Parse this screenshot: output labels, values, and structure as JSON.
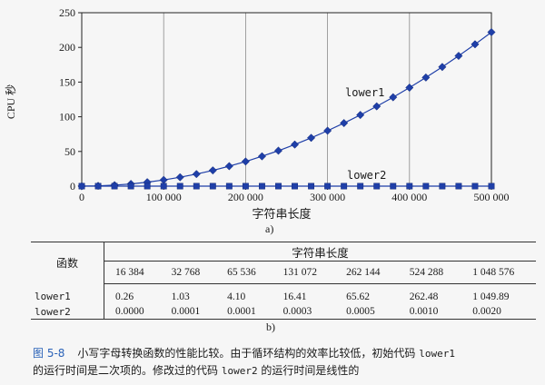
{
  "chart_data": {
    "type": "line",
    "ylabel": "CPU 秒",
    "xlabel": "字符串长度",
    "xlim": [
      0,
      500000
    ],
    "ylim": [
      0,
      250
    ],
    "xticks": [
      0,
      100000,
      200000,
      300000,
      400000,
      500000
    ],
    "xtick_labels": [
      "0",
      "100 000",
      "200 000",
      "300 000",
      "400 000",
      "500 000"
    ],
    "yticks": [
      0,
      50,
      100,
      150,
      200,
      250
    ],
    "ytick_labels": [
      "0",
      "50",
      "100",
      "150",
      "200",
      "250"
    ],
    "grid": "vertical",
    "series_color": "#1f3fa8",
    "series": [
      {
        "name": "lower1",
        "marker": "diamond",
        "x": [
          0,
          20000,
          40000,
          60000,
          80000,
          100000,
          120000,
          140000,
          160000,
          180000,
          200000,
          220000,
          240000,
          260000,
          280000,
          300000,
          320000,
          340000,
          360000,
          380000,
          400000,
          420000,
          440000,
          460000,
          480000,
          500000
        ],
        "y": [
          0,
          0.4,
          1.4,
          3.2,
          5.7,
          8.9,
          12.8,
          17.4,
          22.7,
          28.8,
          35.5,
          43.0,
          51.1,
          60.0,
          69.6,
          79.9,
          90.9,
          102.6,
          115.0,
          128.1,
          142.0,
          156.6,
          171.8,
          187.8,
          204.5,
          221.9
        ]
      },
      {
        "name": "lower2",
        "marker": "square",
        "x": [
          0,
          20000,
          40000,
          60000,
          80000,
          100000,
          120000,
          140000,
          160000,
          180000,
          200000,
          220000,
          240000,
          260000,
          280000,
          300000,
          320000,
          340000,
          360000,
          380000,
          400000,
          420000,
          440000,
          460000,
          480000,
          500000
        ],
        "y": [
          0,
          0,
          0,
          0,
          0,
          0,
          0,
          0,
          0,
          0,
          0,
          0,
          0,
          0,
          0,
          0,
          0,
          0,
          0,
          0,
          0,
          0,
          0,
          0,
          0,
          0
        ]
      }
    ]
  },
  "sublabel_a": "a)",
  "sublabel_b": "b)",
  "table": {
    "func_header": "函数",
    "group_header": "字符串长度",
    "sizes": [
      "16 384",
      "32 768",
      "65 536",
      "131 072",
      "262 144",
      "524 288",
      "1 048 576"
    ],
    "rows": [
      {
        "name": "lower1",
        "values": [
          "0.26",
          "1.03",
          "4.10",
          "16.41",
          "65.62",
          "262.48",
          "1 049.89"
        ]
      },
      {
        "name": "lower2",
        "values": [
          "0.0000",
          "0.0001",
          "0.0001",
          "0.0003",
          "0.0005",
          "0.0010",
          "0.0020"
        ]
      }
    ]
  },
  "caption": {
    "fig_no": "图 5-8",
    "t1": "小写字母转换函数的性能比较。由于循环结构的效率比较低，初始代码",
    "c1": "lower1",
    "t2": "的运行时间是二次项的。修改过的代码",
    "c2": "lower2",
    "t3": "的运行时间是线性的"
  }
}
